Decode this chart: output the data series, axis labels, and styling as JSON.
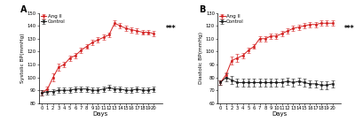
{
  "days": [
    0,
    1,
    2,
    3,
    4,
    5,
    6,
    7,
    8,
    9,
    10,
    11,
    12,
    13,
    14,
    15,
    16,
    17,
    18,
    19,
    20
  ],
  "systolic_angII": [
    88,
    91,
    100,
    108,
    110,
    115,
    117,
    121,
    124,
    127,
    129,
    131,
    133,
    142,
    140,
    138,
    137,
    136,
    135,
    135,
    134
  ],
  "systolic_angII_err": [
    2,
    2,
    3,
    3,
    2,
    2,
    2,
    2,
    2,
    2,
    2,
    2,
    2,
    2,
    2,
    2,
    2,
    2,
    2,
    2,
    2
  ],
  "systolic_ctrl": [
    88,
    89,
    89,
    90,
    90,
    90,
    91,
    91,
    91,
    90,
    90,
    91,
    92,
    91,
    91,
    90,
    90,
    91,
    90,
    90,
    91
  ],
  "systolic_ctrl_err": [
    2,
    2,
    2,
    2,
    2,
    2,
    2,
    2,
    2,
    2,
    2,
    2,
    2,
    2,
    2,
    2,
    2,
    2,
    2,
    2,
    2
  ],
  "systolic_ylim": [
    80,
    150
  ],
  "systolic_yticks": [
    80,
    90,
    100,
    110,
    120,
    130,
    140,
    150
  ],
  "systolic_ylabel": "Systolic BP(mmHg)",
  "diastolic_angII": [
    76,
    82,
    93,
    95,
    97,
    101,
    104,
    110,
    110,
    112,
    112,
    114,
    116,
    118,
    119,
    120,
    121,
    121,
    122,
    122,
    122
  ],
  "diastolic_angII_err": [
    2,
    2,
    3,
    3,
    2,
    2,
    2,
    2,
    2,
    2,
    2,
    2,
    2,
    2,
    2,
    2,
    2,
    2,
    2,
    2,
    2
  ],
  "diastolic_ctrl": [
    76,
    80,
    78,
    76,
    76,
    76,
    76,
    76,
    76,
    76,
    76,
    76,
    77,
    76,
    77,
    76,
    75,
    75,
    74,
    74,
    75
  ],
  "diastolic_ctrl_err": [
    2,
    3,
    3,
    3,
    3,
    3,
    3,
    3,
    3,
    3,
    3,
    3,
    3,
    3,
    3,
    3,
    3,
    3,
    3,
    3,
    3
  ],
  "diastolic_ylim": [
    60,
    130
  ],
  "diastolic_yticks": [
    60,
    70,
    80,
    90,
    100,
    110,
    120,
    130
  ],
  "diastolic_ylabel": "Diastolic BP(mmHg)",
  "xlabel": "Days",
  "angII_color": "#d42020",
  "ctrl_color": "#1a1a1a",
  "sig_text": "***",
  "panel_labels": [
    "A",
    "B"
  ],
  "legend_angII": "Ang II",
  "legend_ctrl": "Control",
  "xtick_labels": [
    "0",
    "1",
    "2",
    "3",
    "4",
    "5",
    "6",
    "7",
    "8",
    "9",
    "10",
    "11",
    "12",
    "13",
    "14",
    "15",
    "16",
    "17",
    "18",
    "19",
    "20"
  ]
}
